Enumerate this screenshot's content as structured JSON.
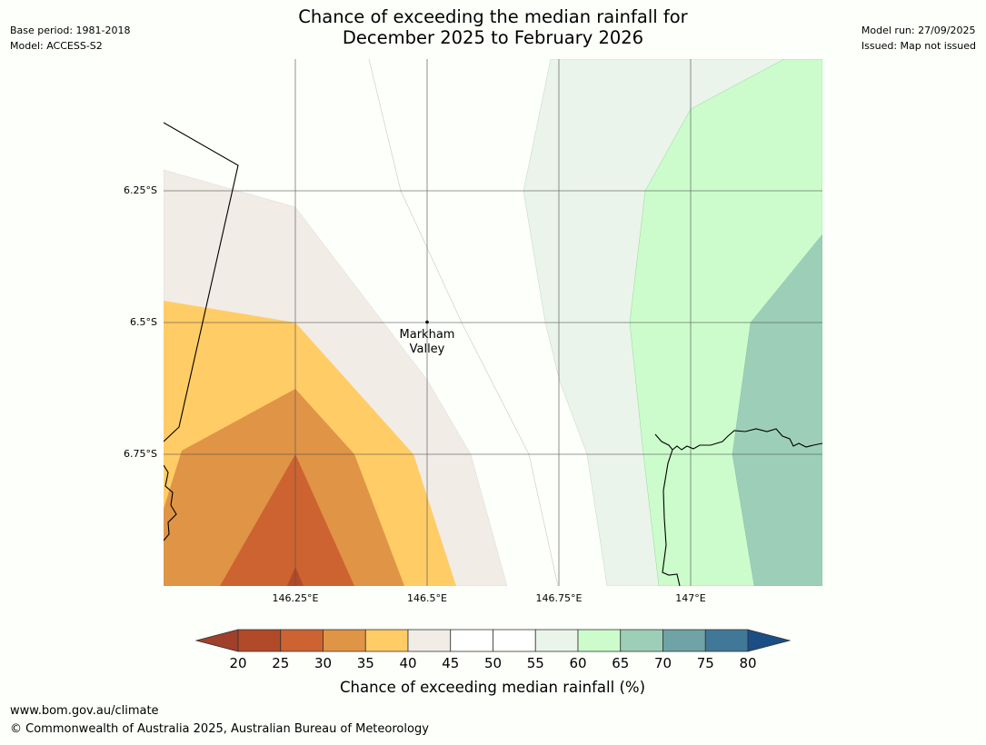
{
  "header": {
    "title_line1": "Chance of exceeding the median rainfall for",
    "title_line2": "December 2025 to February 2026",
    "base_period": "Base period: 1981-2018",
    "model": "Model: ACCESS-S2",
    "model_run": "Model run: 27/09/2025",
    "issued": "Issued: Map not issued"
  },
  "map": {
    "place_label_line1": "Markham",
    "place_label_line2": "Valley",
    "lat_labels": [
      "6.25°S",
      "6.5°S",
      "6.75°S"
    ],
    "lon_labels": [
      "146.25°E",
      "146.5°E",
      "146.75°E",
      "147°E"
    ]
  },
  "legend": {
    "ticks": [
      "20",
      "25",
      "30",
      "35",
      "40",
      "45",
      "50",
      "55",
      "60",
      "65",
      "70",
      "75",
      "80"
    ],
    "label": "Chance of exceeding median rainfall (%)",
    "colors": {
      "under": "#a0402a",
      "bins": [
        "#b04a28",
        "#cc6331",
        "#e09446",
        "#ffcc66",
        "#f1ece6",
        "#ffffff",
        "#ffffff",
        "#eaf4eb",
        "#ccfccc",
        "#9dcfb8",
        "#6fa3a6",
        "#417898"
      ],
      "over": "#1a4e84"
    }
  },
  "footer": {
    "url": "www.bom.gov.au/climate",
    "copyright": "© Commonwealth of Australia 2025, Australian Bureau of Meteorology"
  }
}
